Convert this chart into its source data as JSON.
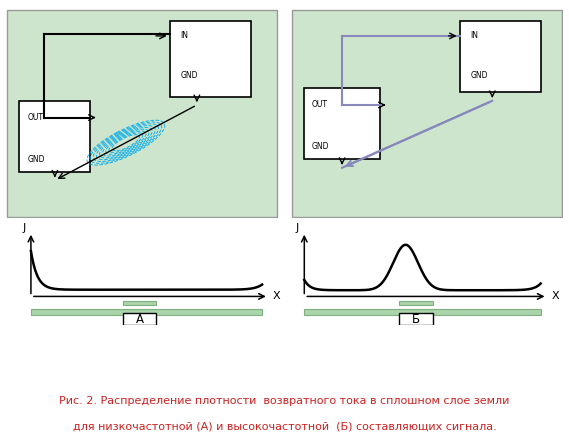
{
  "bg_color": "#cde5cd",
  "box_color": "#ffffff",
  "box_edge": "#000000",
  "dashed_color": "#00aaee",
  "hf_color": "#8888bb",
  "ground_bar_color": "#aad4aa",
  "ground_bar_edge": "#80b080",
  "ground_rect_color": "#aad4aa",
  "ground_rect_edge": "#80b080",
  "caption_color": "#cc2222",
  "caption_text": "Рис. 2. Распределение плотности  возвратного тока в сплошном слое земли",
  "caption_text2": "для низкочастотной (А) и высокочастотной  (Б) составляющих сигнала.",
  "label_A": "А",
  "label_B": "Б",
  "label_J": "J",
  "label_X": "X"
}
